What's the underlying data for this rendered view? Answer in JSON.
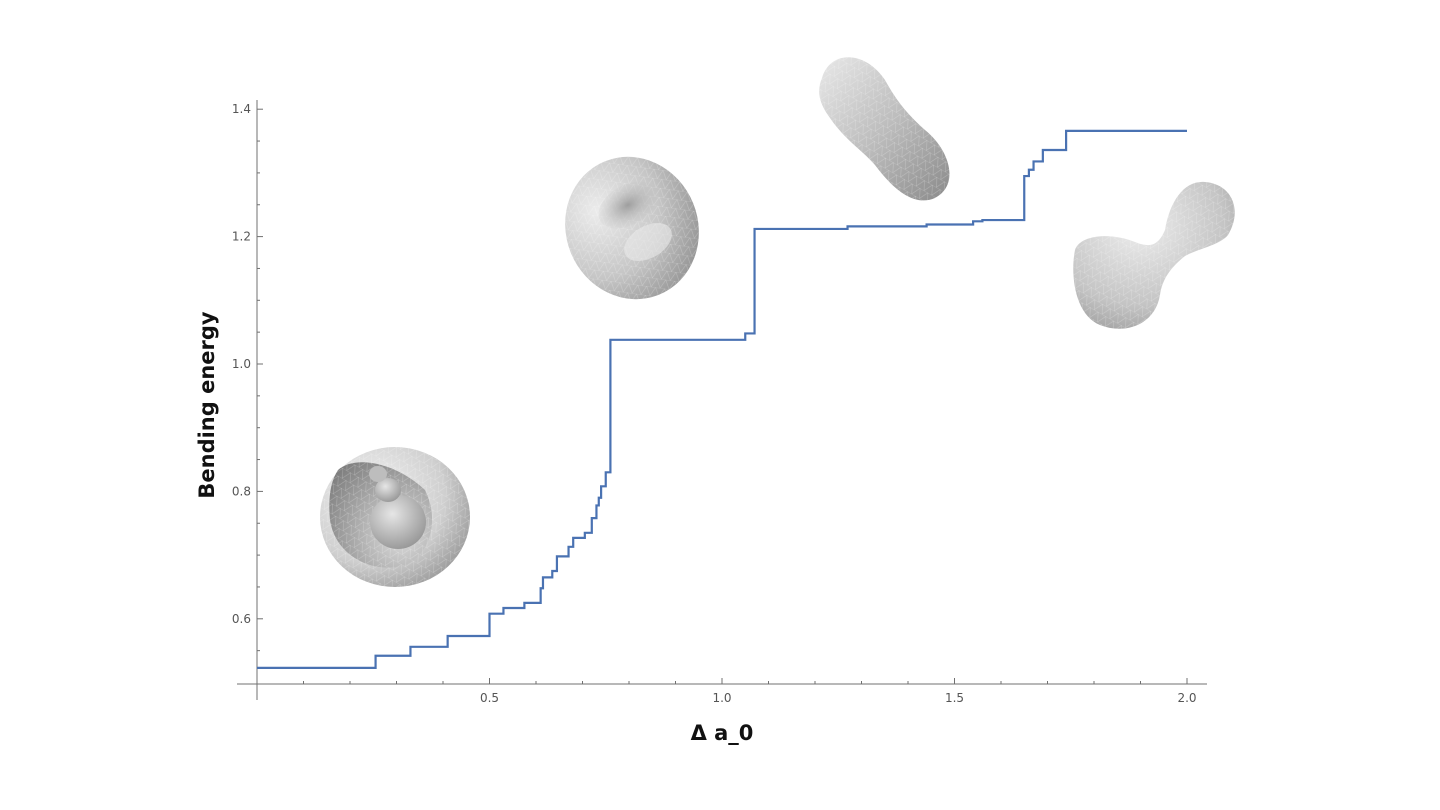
{
  "chart_data": {
    "type": "line",
    "title": "",
    "xlabel": "Δ a_0",
    "ylabel": "Bending energy",
    "xlim": [
      0,
      2.05
    ],
    "ylim": [
      0.5,
      1.41
    ],
    "grid": false,
    "x_ticks": [
      {
        "value": 0.5,
        "label": "0.5"
      },
      {
        "value": 1.0,
        "label": "1.0"
      },
      {
        "value": 1.5,
        "label": "1.5"
      },
      {
        "value": 2.0,
        "label": "2.0"
      }
    ],
    "y_ticks": [
      {
        "value": 0.6,
        "label": "0.6"
      },
      {
        "value": 0.8,
        "label": "0.8"
      },
      {
        "value": 1.0,
        "label": "1.0"
      },
      {
        "value": 1.2,
        "label": "1.2"
      },
      {
        "value": 1.4,
        "label": "1.4"
      }
    ],
    "series": [
      {
        "color": "#4a72b2",
        "step": true,
        "points": [
          [
            0.0,
            0.523
          ],
          [
            0.255,
            0.542
          ],
          [
            0.33,
            0.556
          ],
          [
            0.41,
            0.573
          ],
          [
            0.5,
            0.608
          ],
          [
            0.53,
            0.617
          ],
          [
            0.575,
            0.625
          ],
          [
            0.61,
            0.648
          ],
          [
            0.615,
            0.665
          ],
          [
            0.635,
            0.675
          ],
          [
            0.645,
            0.698
          ],
          [
            0.67,
            0.713
          ],
          [
            0.68,
            0.727
          ],
          [
            0.705,
            0.735
          ],
          [
            0.72,
            0.758
          ],
          [
            0.73,
            0.778
          ],
          [
            0.735,
            0.79
          ],
          [
            0.74,
            0.808
          ],
          [
            0.75,
            0.83
          ],
          [
            0.76,
            1.038
          ],
          [
            1.05,
            1.048
          ],
          [
            1.07,
            1.212
          ],
          [
            1.27,
            1.216
          ],
          [
            1.44,
            1.219
          ],
          [
            1.54,
            1.224
          ],
          [
            1.56,
            1.226
          ],
          [
            1.65,
            1.295
          ],
          [
            1.66,
            1.305
          ],
          [
            1.67,
            1.318
          ],
          [
            1.69,
            1.336
          ],
          [
            1.74,
            1.366
          ],
          [
            2.0,
            1.366
          ]
        ]
      }
    ]
  },
  "insets": [
    {
      "name": "stomatocyte-shape"
    },
    {
      "name": "discocyte-shape"
    },
    {
      "name": "prolate-shape"
    },
    {
      "name": "dumbbell-shape"
    }
  ],
  "colors": {
    "axis": "#707070",
    "line": "#4a72b2",
    "shape_light": "#f2f2f2",
    "shape_dark": "#8a8a8a"
  }
}
